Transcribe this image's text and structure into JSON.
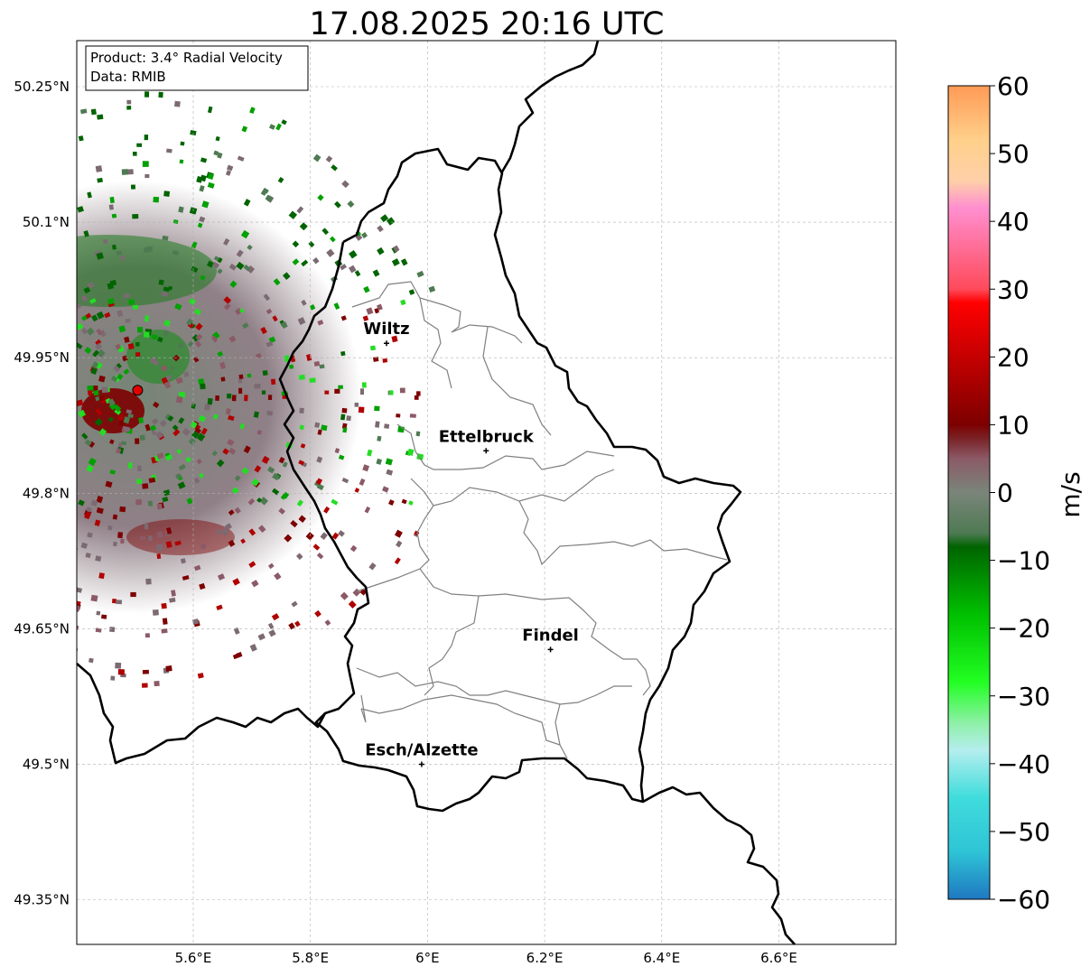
{
  "title": "17.08.2025 20:16 UTC",
  "info": {
    "product": "Product: 3.4° Radial Velocity",
    "data": "Data: RMIB"
  },
  "axes": {
    "lat_ticks": [
      {
        "value": 50.25,
        "label": "50.25°N"
      },
      {
        "value": 50.1,
        "label": "50.1°N"
      },
      {
        "value": 49.95,
        "label": "49.95°N"
      },
      {
        "value": 49.8,
        "label": "49.8°N"
      },
      {
        "value": 49.65,
        "label": "49.65°N"
      },
      {
        "value": 49.5,
        "label": "49.5°N"
      },
      {
        "value": 49.35,
        "label": "49.35°N"
      }
    ],
    "lon_ticks": [
      {
        "value": 5.6,
        "label": "5.6°E"
      },
      {
        "value": 5.8,
        "label": "5.8°E"
      },
      {
        "value": 6.0,
        "label": "6°E"
      },
      {
        "value": 6.2,
        "label": "6.2°E"
      },
      {
        "value": 6.4,
        "label": "6.4°E"
      },
      {
        "value": 6.6,
        "label": "6.6°E"
      }
    ],
    "grid": true
  },
  "cities": [
    {
      "name": "Wiltz",
      "lon": 5.93,
      "lat": 49.966
    },
    {
      "name": "Ettelbruck",
      "lon": 6.1,
      "lat": 49.847
    },
    {
      "name": "Findel",
      "lon": 6.21,
      "lat": 49.627
    },
    {
      "name": "Esch/Alzette",
      "lon": 5.99,
      "lat": 49.5
    }
  ],
  "radar_site": {
    "lon": 5.505,
    "lat": 49.914
  },
  "colorbar": {
    "label": "m/s",
    "min": -60,
    "max": 60,
    "ticks": [
      {
        "value": 60,
        "label": "60"
      },
      {
        "value": 50,
        "label": "50"
      },
      {
        "value": 40,
        "label": "40"
      },
      {
        "value": 30,
        "label": "30"
      },
      {
        "value": 20,
        "label": "20"
      },
      {
        "value": 10,
        "label": "10"
      },
      {
        "value": 0,
        "label": "0"
      },
      {
        "value": -10,
        "label": "−10"
      },
      {
        "value": -20,
        "label": "−20"
      },
      {
        "value": -30,
        "label": "−30"
      },
      {
        "value": -40,
        "label": "−40"
      },
      {
        "value": -50,
        "label": "−50"
      },
      {
        "value": -60,
        "label": "−60"
      }
    ],
    "stops": [
      {
        "value": -60,
        "color": "#1f78c1"
      },
      {
        "value": -53,
        "color": "#2ec4d6"
      },
      {
        "value": -45,
        "color": "#40dcdc"
      },
      {
        "value": -38,
        "color": "#b5eeee"
      },
      {
        "value": -34,
        "color": "#8ef0a8"
      },
      {
        "value": -28,
        "color": "#22ff22"
      },
      {
        "value": -18,
        "color": "#00c000"
      },
      {
        "value": -8,
        "color": "#006400"
      },
      {
        "value": -6,
        "color": "#4e7a52"
      },
      {
        "value": 0,
        "color": "#7a857a"
      },
      {
        "value": 5,
        "color": "#8b5a66"
      },
      {
        "value": 8,
        "color": "#7a2226"
      },
      {
        "value": 10,
        "color": "#7d0000"
      },
      {
        "value": 28,
        "color": "#ff0000"
      },
      {
        "value": 30,
        "color": "#ff4a5a"
      },
      {
        "value": 42,
        "color": "#ff8fd0"
      },
      {
        "value": 46,
        "color": "#ffd0a8"
      },
      {
        "value": 52,
        "color": "#ffd08a"
      },
      {
        "value": 60,
        "color": "#ff9a55"
      }
    ]
  }
}
